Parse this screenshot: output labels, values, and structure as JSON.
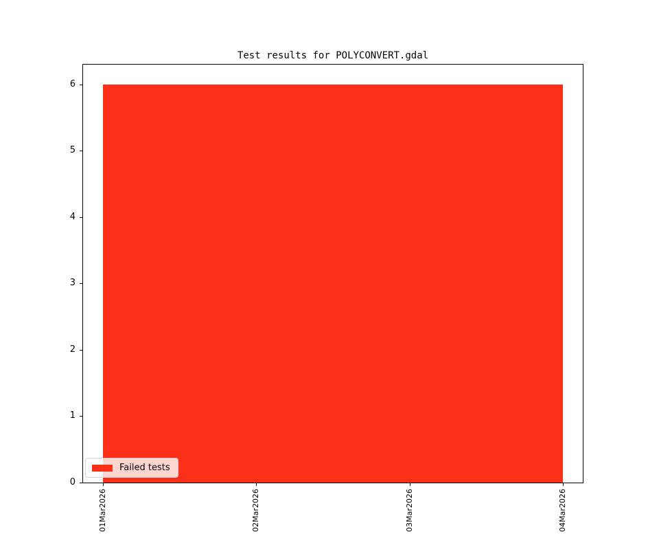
{
  "figure": {
    "background": "#ffffff",
    "frame_color": "#000000"
  },
  "chart_data": {
    "type": "area",
    "title": "Test results for POLYCONVERT.gdal",
    "x": [
      "01Mar2026",
      "02Mar2026",
      "03Mar2026",
      "04Mar2026"
    ],
    "series": [
      {
        "name": "Failed tests",
        "values": [
          6,
          6,
          6,
          6
        ],
        "color": "#fc2f18"
      }
    ],
    "xlabel": "",
    "ylabel": "",
    "ylim": [
      0,
      6.3
    ],
    "yticks": [
      0,
      1,
      2,
      3,
      4,
      5,
      6
    ],
    "grid": false,
    "legend": {
      "label": "Failed tests",
      "position": "lower-left"
    }
  }
}
